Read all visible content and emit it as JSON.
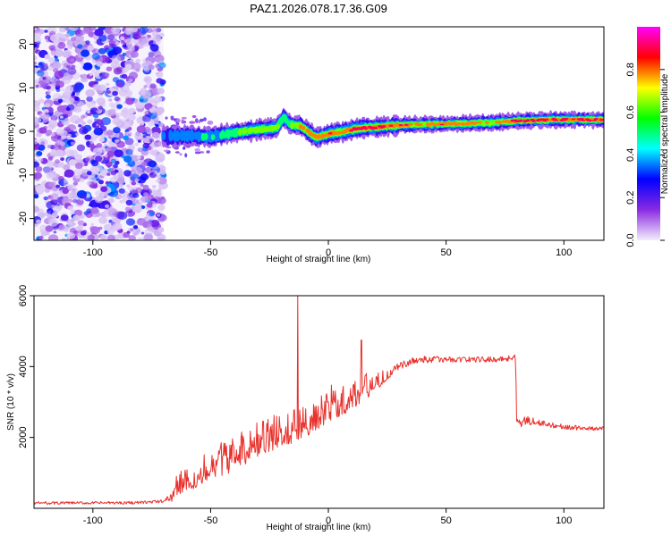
{
  "title": "PAZ1.2026.078.17.36.G09",
  "chart_data": [
    {
      "type": "heatmap",
      "name": "spectrogram",
      "xlabel": "Height of straight line (km)",
      "ylabel": "Frequency (Hz)",
      "xlim": [
        -125,
        117
      ],
      "ylim": [
        -25,
        24
      ],
      "xticks": [
        -100,
        -50,
        0,
        50,
        100
      ],
      "xtick_labels": [
        "-100",
        "-50",
        "0",
        "50",
        "100"
      ],
      "yticks": [
        -20,
        -10,
        0,
        10,
        20
      ],
      "ytick_labels": [
        "-20",
        "-10",
        "0",
        "10",
        "20"
      ],
      "noise_region_x": [
        -125,
        -70
      ],
      "ridge": {
        "x": [
          -70,
          -60,
          -50,
          -40,
          -30,
          -22,
          -19,
          -16,
          -12,
          -8,
          -5,
          0,
          5,
          10,
          15,
          20,
          25,
          30,
          40,
          50,
          60,
          70,
          80,
          90,
          100,
          110,
          117
        ],
        "frequency": [
          -1.2,
          -1.0,
          -1.3,
          -0.3,
          0.4,
          0.8,
          3.2,
          1.5,
          1.3,
          -0.3,
          -1.5,
          -0.6,
          -0.2,
          0.4,
          0.8,
          0.9,
          1.2,
          1.4,
          1.6,
          1.7,
          1.8,
          2.0,
          2.4,
          2.6,
          2.7,
          2.7,
          2.6
        ],
        "amplitude": [
          0.3,
          0.35,
          0.4,
          0.5,
          0.65,
          0.6,
          0.55,
          0.5,
          0.7,
          0.75,
          0.85,
          0.8,
          0.75,
          0.85,
          0.9,
          0.9,
          0.85,
          0.8,
          0.75,
          0.78,
          0.75,
          0.6,
          0.85,
          0.9,
          0.85,
          0.9,
          0.8
        ]
      },
      "colorbar": {
        "label": "Normalized spectral amplitude",
        "range": [
          0,
          1
        ],
        "ticks": [
          0.0,
          0.2,
          0.4,
          0.6,
          0.8
        ],
        "tick_labels": [
          "0.0",
          "0.2",
          "0.4",
          "0.6",
          "0.8"
        ],
        "colors": [
          "#f3eefc",
          "#8a2be2",
          "#0000ff",
          "#00ffff",
          "#00ff00",
          "#ffff00",
          "#ff0000",
          "#ff00ff"
        ]
      }
    },
    {
      "type": "line",
      "name": "snr",
      "xlabel": "Height of straight line (km)",
      "ylabel": "SNR (10 * v/v)",
      "xlim": [
        -125,
        117
      ],
      "ylim": [
        0,
        6000
      ],
      "xticks": [
        -100,
        -50,
        0,
        50,
        100
      ],
      "xtick_labels": [
        "-100",
        "-50",
        "0",
        "50",
        "100"
      ],
      "yticks": [
        2000,
        4000,
        6000
      ],
      "ytick_labels": [
        "2000",
        "4000",
        "6000"
      ],
      "color": "#e8312c",
      "series": [
        {
          "name": "SNR",
          "x": [
            -125,
            -100,
            -80,
            -70,
            -66,
            -65,
            -60,
            -55,
            -50,
            -45,
            -40,
            -35,
            -30,
            -25,
            -20,
            -15,
            -10,
            -5,
            0,
            5,
            10,
            15,
            20,
            25,
            30,
            35,
            40,
            50,
            60,
            70,
            79.5,
            80,
            81,
            85,
            90,
            95,
            100,
            110,
            117
          ],
          "value": [
            150,
            150,
            160,
            200,
            350,
            600,
            700,
            900,
            1100,
            1250,
            1400,
            1600,
            1800,
            1950,
            2050,
            2200,
            2350,
            2550,
            2800,
            2950,
            3100,
            3300,
            3500,
            3750,
            4000,
            4150,
            4200,
            4200,
            4200,
            4200,
            4250,
            2450,
            2400,
            2500,
            2400,
            2350,
            2300,
            2250,
            2250
          ],
          "noise": [
            40,
            40,
            40,
            40,
            150,
            300,
            300,
            350,
            400,
            450,
            450,
            450,
            450,
            450,
            450,
            450,
            450,
            450,
            450,
            450,
            400,
            350,
            250,
            150,
            100,
            100,
            100,
            80,
            80,
            80,
            80,
            150,
            150,
            150,
            100,
            80,
            70,
            60,
            60
          ]
        }
      ],
      "annotations": [
        {
          "x": -13,
          "value": 6000,
          "text": ""
        },
        {
          "x": 14,
          "value": 4750,
          "text": ""
        }
      ]
    }
  ]
}
